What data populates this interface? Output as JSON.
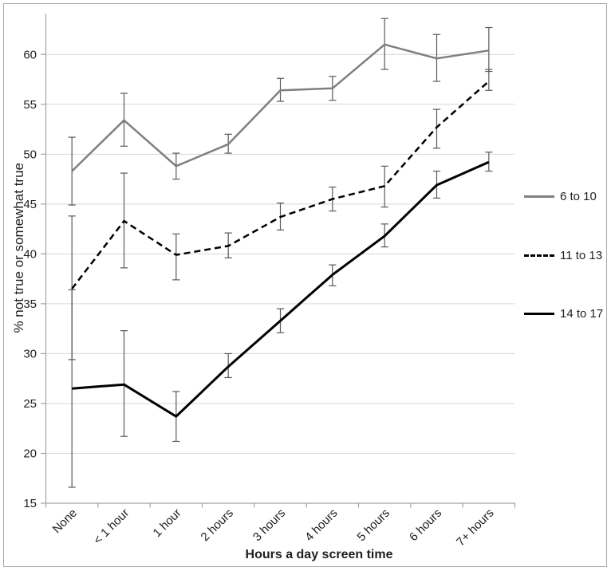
{
  "figure": {
    "border_color": "#a9a9a9",
    "background": "#ffffff"
  },
  "chart_data": {
    "type": "line",
    "title": "",
    "xlabel": "Hours a day screen time",
    "ylabel": "% not true or somewhat true",
    "categories": [
      "None",
      "< 1 hour",
      "1 hour",
      "2 hours",
      "3 hours",
      "4 hours",
      "5 hours",
      "6 hours",
      "7+ hours"
    ],
    "yticks": [
      15,
      20,
      25,
      30,
      35,
      40,
      45,
      50,
      55,
      60
    ],
    "ylim": [
      15,
      64.1
    ],
    "grid": true,
    "legend_position": "right",
    "error_bars": true,
    "error_bar_color": "#595959",
    "gridline_color": "#d6d6d6",
    "axis_color": "#a3a3a3",
    "series": [
      {
        "name": "6 to 10",
        "color": "#7f7f7f",
        "style": "solid",
        "width": 2.5,
        "values": [
          48.3,
          53.4,
          48.8,
          51.0,
          56.4,
          56.6,
          61.0,
          59.6,
          60.4
        ],
        "err_lo": [
          44.9,
          50.8,
          47.5,
          50.1,
          55.3,
          55.4,
          58.5,
          57.3,
          58.3
        ],
        "err_hi": [
          51.7,
          56.1,
          50.1,
          52.0,
          57.6,
          57.8,
          63.6,
          62.0,
          62.7
        ]
      },
      {
        "name": "11 to 13",
        "color": "#000000",
        "style": "dashed",
        "width": 2.5,
        "values": [
          36.5,
          43.3,
          39.9,
          40.8,
          43.7,
          45.5,
          46.8,
          52.7,
          57.3
        ],
        "err_lo": [
          29.4,
          38.6,
          37.4,
          39.6,
          42.4,
          44.3,
          44.7,
          50.6,
          56.4
        ],
        "err_hi": [
          43.8,
          48.1,
          42.0,
          42.1,
          45.1,
          46.7,
          48.8,
          54.5,
          58.5
        ]
      },
      {
        "name": "14 to 17",
        "color": "#000000",
        "style": "solid",
        "width": 3,
        "values": [
          26.5,
          26.9,
          23.7,
          28.7,
          33.3,
          37.9,
          41.8,
          46.9,
          49.2
        ],
        "err_lo": [
          16.6,
          21.7,
          21.2,
          27.6,
          32.1,
          36.8,
          40.7,
          45.6,
          48.3
        ],
        "err_hi": [
          36.4,
          32.3,
          26.2,
          30.0,
          34.5,
          38.9,
          43.0,
          48.3,
          50.2
        ]
      }
    ]
  }
}
